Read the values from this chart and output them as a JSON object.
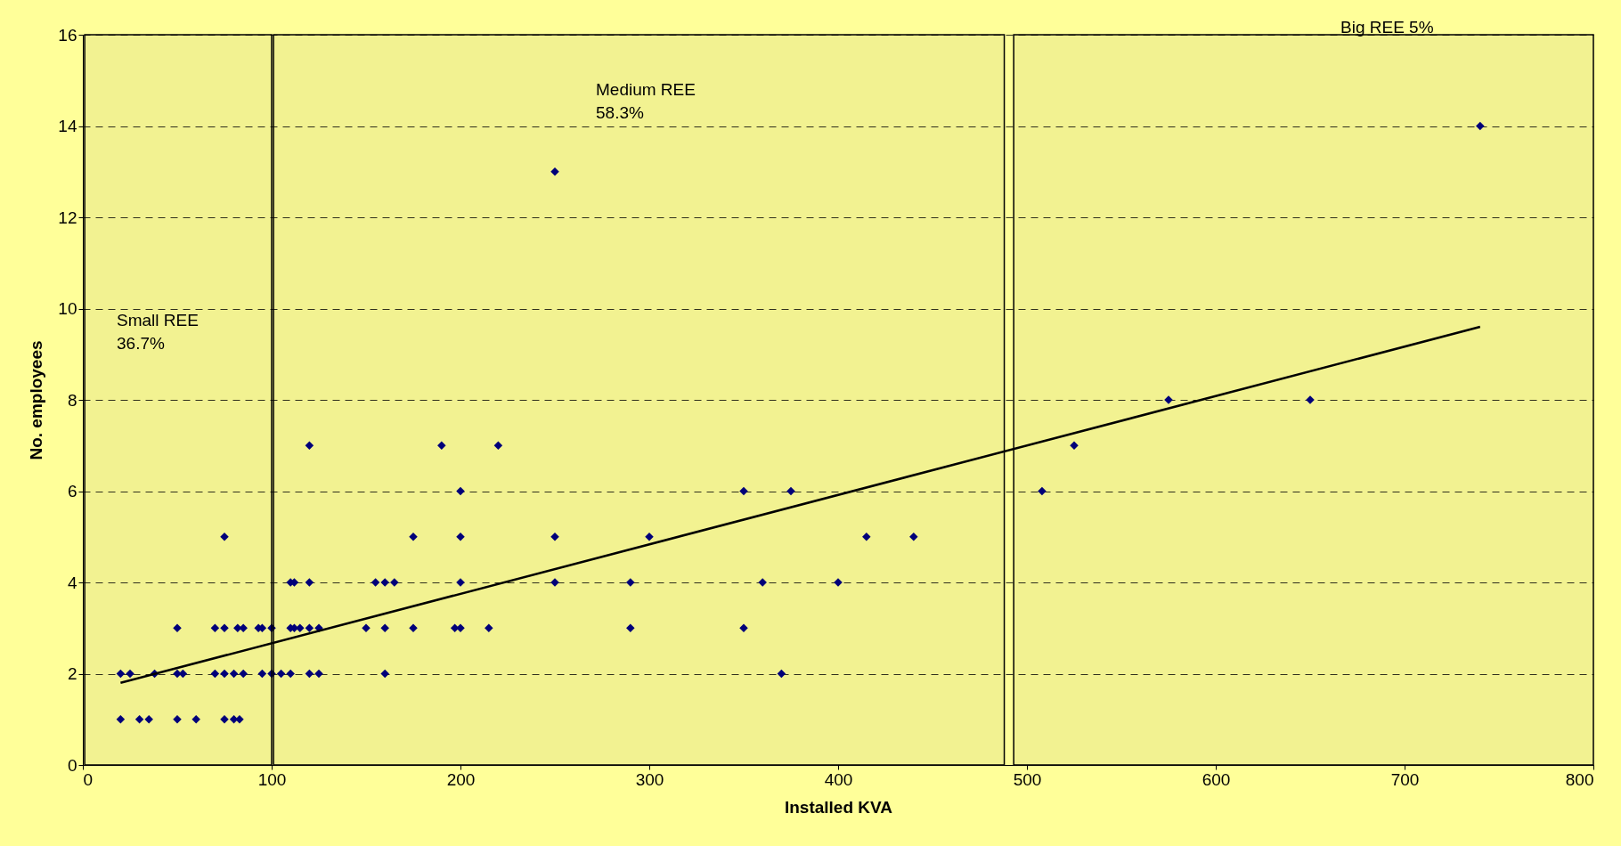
{
  "chart_data": {
    "type": "scatter",
    "xlabel": "Installed KVA",
    "ylabel": "No. employees",
    "xlim": [
      0,
      800
    ],
    "ylim": [
      0,
      16
    ],
    "xticks": [
      0,
      100,
      200,
      300,
      400,
      500,
      600,
      700,
      800
    ],
    "yticks": [
      0,
      2,
      4,
      6,
      8,
      10,
      12,
      14,
      16
    ],
    "grid": "y",
    "marker": "diamond",
    "series": [
      {
        "color": "#000080",
        "x": [
          20,
          30,
          35,
          50,
          60,
          75,
          80,
          83,
          20,
          25,
          38,
          50,
          53,
          70,
          75,
          80,
          85,
          95,
          100,
          105,
          110,
          120,
          125,
          50,
          70,
          75,
          82,
          85,
          93,
          95,
          100,
          110,
          112,
          115,
          120,
          125,
          110,
          112,
          120,
          75,
          120,
          190,
          220,
          200,
          175,
          200,
          250,
          155,
          160,
          165,
          200,
          250,
          150,
          160,
          175,
          197,
          200,
          215,
          160,
          250,
          350,
          375,
          300,
          415,
          440,
          290,
          360,
          400,
          290,
          350,
          370,
          508,
          525,
          575,
          650,
          740
        ],
        "values": [
          1,
          1,
          1,
          1,
          1,
          1,
          1,
          1,
          2,
          2,
          2,
          2,
          2,
          2,
          2,
          2,
          2,
          2,
          2,
          2,
          2,
          2,
          2,
          3,
          3,
          3,
          3,
          3,
          3,
          3,
          3,
          3,
          3,
          3,
          3,
          3,
          4,
          4,
          4,
          5,
          7,
          7,
          7,
          6,
          5,
          5,
          5,
          4,
          4,
          4,
          4,
          4,
          3,
          3,
          3,
          3,
          3,
          3,
          2,
          13,
          6,
          6,
          5,
          5,
          5,
          4,
          4,
          4,
          3,
          3,
          2,
          6,
          7,
          8,
          8,
          14
        ]
      },
      {
        "type": "line",
        "color": "#000000",
        "marker": "none",
        "line_style": "solid",
        "x": [
          20,
          740
        ],
        "values": [
          1.8,
          9.6
        ]
      }
    ],
    "bands": [
      {
        "axis": "x",
        "from": 1,
        "to": 100,
        "color": "#000000"
      },
      {
        "axis": "x",
        "from": 101,
        "to": 488,
        "color": "#000000"
      },
      {
        "axis": "x",
        "from": 493,
        "to": 800,
        "color": "#000000"
      }
    ],
    "annotations": [
      "Small REE\n36.7%",
      "Medium REE\n58.3%",
      "Big REE 5%"
    ]
  }
}
